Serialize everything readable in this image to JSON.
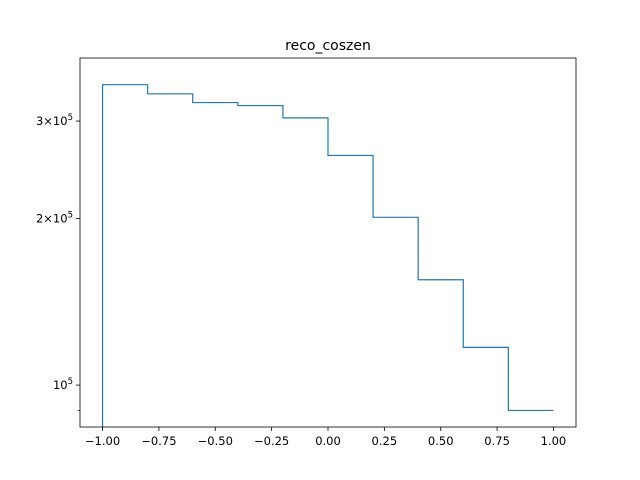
{
  "chart_data": {
    "type": "histogram",
    "title": "reco_coszen",
    "xlabel": "",
    "ylabel": "",
    "y_scale": "log",
    "xlim": [
      -1.1,
      1.1
    ],
    "ylim": [
      84000,
      390000
    ],
    "x_ticks": [
      -1.0,
      -0.75,
      -0.5,
      -0.25,
      0.0,
      0.25,
      0.5,
      0.75,
      1.0
    ],
    "x_tick_labels": [
      "−1.00",
      "−0.75",
      "−0.50",
      "−0.25",
      "0.00",
      "0.25",
      "0.50",
      "0.75",
      "1.00"
    ],
    "y_major_ticks": [
      {
        "value": 100000,
        "mantissa": "",
        "base": "10",
        "exp": "5"
      },
      {
        "value": 200000,
        "mantissa": "2×",
        "base": "10",
        "exp": "5"
      },
      {
        "value": 300000,
        "mantissa": "3×",
        "base": "10",
        "exp": "5"
      }
    ],
    "y_minor_ticks": [
      90000
    ],
    "bin_edges": [
      -1.0,
      -0.8,
      -0.6,
      -0.4,
      -0.2,
      0.0,
      0.2,
      0.4,
      0.6,
      0.8,
      1.0
    ],
    "values": [
      349000,
      336000,
      324000,
      320000,
      304000,
      260000,
      201000,
      155000,
      117000,
      90000
    ],
    "line_color": "#1f77b4",
    "grid": false
  }
}
